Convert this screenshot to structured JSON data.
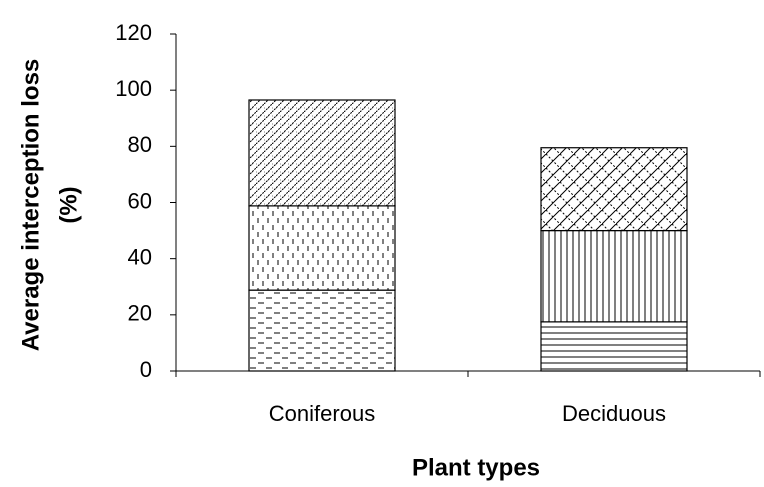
{
  "chart_data": {
    "type": "stacked-bar",
    "categories": [
      "Coniferous",
      "Deciduous"
    ],
    "series": [
      {
        "color": "#000000",
        "values": [
          28.8,
          17.5
        ]
      },
      {
        "color": "#000000",
        "values": [
          30,
          32.5
        ]
      },
      {
        "color": "#000000",
        "values": [
          37.7,
          29.5
        ]
      }
    ],
    "ylabel": [
      "Average interception loss",
      "(%)"
    ],
    "xlabel": "Plant types",
    "ylim": [
      0,
      120
    ],
    "yticks": [
      0,
      20,
      40,
      60,
      80,
      100,
      120
    ],
    "grid": false
  }
}
